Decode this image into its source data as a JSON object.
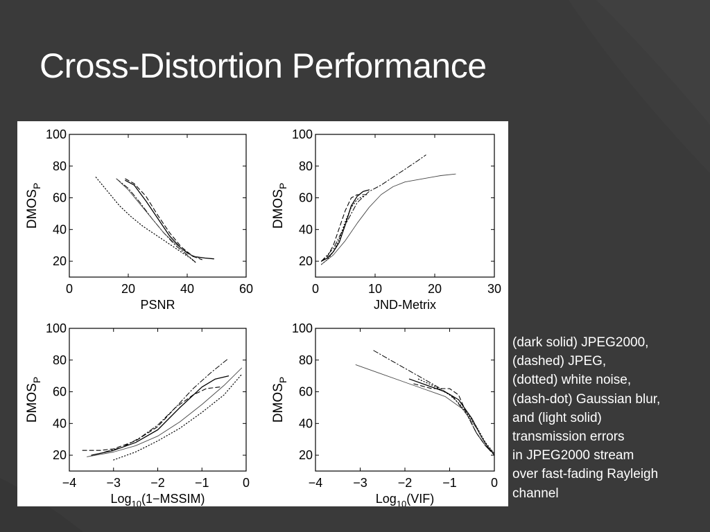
{
  "slide": {
    "title": "Cross-Distortion Performance",
    "caption_lines": [
      "(dark solid) JPEG2000,",
      "(dashed) JPEG,",
      "(dotted) white noise,",
      "(dash-dot) Gaussian blur,",
      "and (light solid)",
      "transmission errors",
      "in JPEG2000 stream",
      "over fast-fading Rayleigh",
      "channel"
    ],
    "colors": {
      "background": "#3b3b3b",
      "text": "#ffffff",
      "plot_ink": "#000000"
    }
  },
  "chart_data": [
    {
      "type": "line",
      "xlabel": "PSNR",
      "ylabel": "DMOSP",
      "xlim": [
        0,
        60
      ],
      "ylim": [
        10,
        100
      ],
      "xticks": [
        0,
        20,
        40,
        60
      ],
      "xtick_labels": [
        "0",
        "20",
        "40",
        "60"
      ],
      "yticks": [
        20,
        40,
        60,
        80,
        100
      ],
      "ytick_labels": [
        "20",
        "40",
        "60",
        "80",
        "100"
      ],
      "grid": false,
      "series": [
        {
          "style": "solid",
          "points": [
            [
              19,
              71
            ],
            [
              22,
              68
            ],
            [
              26,
              58
            ],
            [
              30,
              47
            ],
            [
              34,
              36
            ],
            [
              38,
              28
            ],
            [
              42,
              23
            ],
            [
              46,
              22
            ],
            [
              49,
              21.5
            ]
          ]
        },
        {
          "style": "dashed",
          "points": [
            [
              19,
              72
            ],
            [
              22,
              69
            ],
            [
              26,
              61
            ],
            [
              30,
              49
            ],
            [
              34,
              38
            ],
            [
              38,
              29
            ],
            [
              42,
              23
            ],
            [
              45,
              21
            ]
          ]
        },
        {
          "style": "dotted",
          "points": [
            [
              9,
              73
            ],
            [
              13,
              64
            ],
            [
              17,
              55
            ],
            [
              21,
              48
            ],
            [
              25,
              42
            ],
            [
              29,
              37
            ],
            [
              33,
              32
            ],
            [
              37,
              27
            ],
            [
              41,
              22
            ],
            [
              43,
              19
            ]
          ]
        },
        {
          "style": "dash-dot",
          "points": [
            [
              16,
              72
            ],
            [
              20,
              66
            ],
            [
              24,
              57
            ],
            [
              28,
              47
            ],
            [
              32,
              38
            ],
            [
              36,
              30
            ],
            [
              40,
              24
            ],
            [
              43,
              19
            ]
          ]
        },
        {
          "style": "solid-light",
          "points": [
            [
              16,
              72
            ],
            [
              20,
              65
            ],
            [
              24,
              56
            ],
            [
              28,
              47
            ],
            [
              32,
              38
            ],
            [
              36,
              31
            ],
            [
              40,
              25
            ],
            [
              44,
              22
            ]
          ]
        }
      ]
    },
    {
      "type": "line",
      "xlabel": "JND-Metrix",
      "ylabel": "DMOSP",
      "xlim": [
        0,
        30
      ],
      "ylim": [
        10,
        100
      ],
      "xticks": [
        0,
        10,
        20,
        30
      ],
      "xtick_labels": [
        "0",
        "10",
        "20",
        "30"
      ],
      "yticks": [
        20,
        40,
        60,
        80,
        100
      ],
      "ytick_labels": [
        "20",
        "40",
        "60",
        "80",
        "100"
      ],
      "grid": false,
      "series": [
        {
          "style": "solid",
          "points": [
            [
              1,
              20
            ],
            [
              2,
              22
            ],
            [
              3,
              26
            ],
            [
              4,
              32
            ],
            [
              5,
              43
            ],
            [
              6,
              55
            ],
            [
              7,
              61
            ],
            [
              8,
              64
            ],
            [
              9,
              65
            ]
          ]
        },
        {
          "style": "dashed",
          "points": [
            [
              1,
              20
            ],
            [
              2,
              23
            ],
            [
              3,
              30
            ],
            [
              4,
              41
            ],
            [
              5,
              52
            ],
            [
              6,
              60
            ],
            [
              7,
              62
            ],
            [
              8,
              62
            ],
            [
              9,
              62
            ]
          ]
        },
        {
          "style": "dotted",
          "points": [
            [
              1,
              18
            ],
            [
              2,
              21
            ],
            [
              3,
              26
            ],
            [
              4,
              34
            ],
            [
              5,
              45
            ],
            [
              6,
              54
            ],
            [
              7,
              59
            ],
            [
              8,
              61
            ]
          ]
        },
        {
          "style": "dash-dot",
          "points": [
            [
              1,
              20
            ],
            [
              3,
              28
            ],
            [
              5,
              43
            ],
            [
              7,
              57
            ],
            [
              9,
              64
            ],
            [
              11,
              68
            ],
            [
              13,
              73
            ],
            [
              15,
              78
            ],
            [
              17,
              83
            ],
            [
              18.5,
              87
            ]
          ]
        },
        {
          "style": "solid-light",
          "points": [
            [
              1,
              18
            ],
            [
              3,
              24
            ],
            [
              5,
              33
            ],
            [
              7,
              44
            ],
            [
              9,
              54
            ],
            [
              11,
              62
            ],
            [
              13,
              67
            ],
            [
              15,
              70
            ],
            [
              18,
              72
            ],
            [
              21,
              74
            ],
            [
              23.5,
              75
            ]
          ]
        }
      ]
    },
    {
      "type": "line",
      "xlabel": "Log10(1−MSSIM)",
      "ylabel": "DMOSP",
      "xlim": [
        -4,
        0
      ],
      "ylim": [
        10,
        100
      ],
      "xticks": [
        -4,
        -3,
        -2,
        -1,
        0
      ],
      "xtick_labels": [
        "−4",
        "−3",
        "−2",
        "−1",
        "0"
      ],
      "yticks": [
        20,
        40,
        60,
        80,
        100
      ],
      "ytick_labels": [
        "20",
        "40",
        "60",
        "80",
        "100"
      ],
      "grid": false,
      "series": [
        {
          "style": "solid",
          "points": [
            [
              -3.5,
              20
            ],
            [
              -3,
              23
            ],
            [
              -2.5,
              28
            ],
            [
              -2,
              36
            ],
            [
              -1.5,
              50
            ],
            [
              -1,
              63
            ],
            [
              -0.7,
              68
            ],
            [
              -0.4,
              70
            ]
          ]
        },
        {
          "style": "dashed",
          "points": [
            [
              -3.7,
              23
            ],
            [
              -3.3,
              23
            ],
            [
              -3,
              24
            ],
            [
              -2.5,
              29
            ],
            [
              -2,
              38
            ],
            [
              -1.6,
              50
            ],
            [
              -1.2,
              58
            ],
            [
              -0.9,
              62
            ],
            [
              -0.6,
              63
            ]
          ]
        },
        {
          "style": "dotted",
          "points": [
            [
              -3,
              17
            ],
            [
              -2.5,
              22
            ],
            [
              -2,
              29
            ],
            [
              -1.5,
              37
            ],
            [
              -1,
              47
            ],
            [
              -0.5,
              58
            ],
            [
              -0.1,
              71
            ]
          ]
        },
        {
          "style": "dash-dot",
          "points": [
            [
              -3.2,
              22
            ],
            [
              -2.8,
              25
            ],
            [
              -2.4,
              31
            ],
            [
              -2,
              39
            ],
            [
              -1.6,
              50
            ],
            [
              -1.2,
              62
            ],
            [
              -0.8,
              72
            ],
            [
              -0.4,
              81
            ]
          ]
        },
        {
          "style": "solid-light",
          "points": [
            [
              -3.6,
              19
            ],
            [
              -3,
              22
            ],
            [
              -2.5,
              26
            ],
            [
              -2,
              32
            ],
            [
              -1.5,
              41
            ],
            [
              -1,
              52
            ],
            [
              -0.5,
              64
            ],
            [
              -0.1,
              75
            ]
          ]
        }
      ]
    },
    {
      "type": "line",
      "xlabel": "Log10(VIF)",
      "ylabel": "DMOSP",
      "xlim": [
        -4,
        0
      ],
      "ylim": [
        10,
        100
      ],
      "xticks": [
        -4,
        -3,
        -2,
        -1,
        0
      ],
      "xtick_labels": [
        "−4",
        "−3",
        "−2",
        "−1",
        "0"
      ],
      "yticks": [
        20,
        40,
        60,
        80,
        100
      ],
      "ytick_labels": [
        "20",
        "40",
        "60",
        "80",
        "100"
      ],
      "grid": false,
      "series": [
        {
          "style": "solid",
          "points": [
            [
              -1.9,
              68
            ],
            [
              -1.5,
              64
            ],
            [
              -1.1,
              60
            ],
            [
              -0.8,
              55
            ],
            [
              -0.5,
              43
            ],
            [
              -0.3,
              32
            ],
            [
              -0.1,
              23
            ],
            [
              0,
              21
            ]
          ]
        },
        {
          "style": "dashed",
          "points": [
            [
              -1.8,
              65
            ],
            [
              -1.4,
              62
            ],
            [
              -1,
              62
            ],
            [
              -0.8,
              58
            ],
            [
              -0.6,
              45
            ],
            [
              -0.4,
              34
            ],
            [
              -0.2,
              26
            ],
            [
              0,
              21
            ]
          ]
        },
        {
          "style": "dotted",
          "points": [
            [
              -1.7,
              68
            ],
            [
              -1.3,
              63
            ],
            [
              -1,
              58
            ],
            [
              -0.8,
              53
            ],
            [
              -0.6,
              46
            ],
            [
              -0.4,
              38
            ],
            [
              -0.2,
              28
            ],
            [
              0,
              21
            ]
          ]
        },
        {
          "style": "dash-dot",
          "points": [
            [
              -2.7,
              86
            ],
            [
              -2.2,
              78
            ],
            [
              -1.7,
              70
            ],
            [
              -1.2,
              62
            ],
            [
              -0.9,
              56
            ],
            [
              -0.6,
              45
            ],
            [
              -0.4,
              34
            ],
            [
              -0.2,
              26
            ],
            [
              0,
              20
            ]
          ]
        },
        {
          "style": "solid-light",
          "points": [
            [
              -3.1,
              77
            ],
            [
              -2.6,
              72
            ],
            [
              -2.1,
              67
            ],
            [
              -1.6,
              62
            ],
            [
              -1.1,
              57
            ],
            [
              -0.7,
              49
            ],
            [
              -0.4,
              37
            ],
            [
              -0.2,
              27
            ],
            [
              0,
              21
            ]
          ]
        }
      ]
    }
  ]
}
